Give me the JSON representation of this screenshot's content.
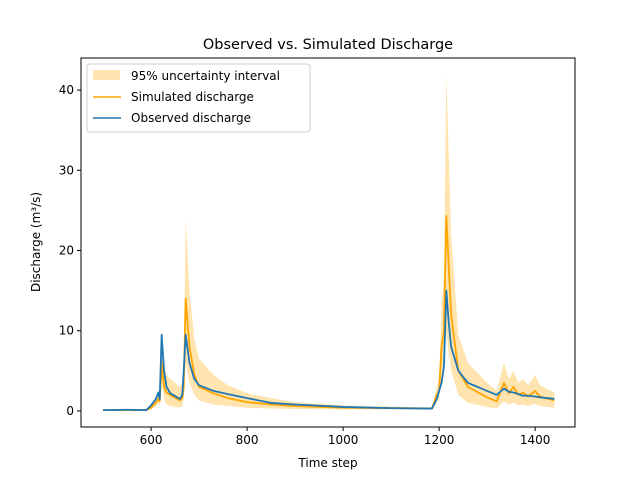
{
  "chart_data": {
    "type": "line",
    "title": "Observed vs. Simulated Discharge",
    "xlabel": "Time step",
    "ylabel": "Discharge (m³/s)",
    "xlim": [
      454,
      1483
    ],
    "ylim": [
      -2,
      44
    ],
    "xticks": [
      600,
      800,
      1000,
      1200,
      1400
    ],
    "yticks": [
      0,
      10,
      20,
      30,
      40
    ],
    "grid": false,
    "legend_placement": "top-left",
    "x": [
      500,
      550,
      590,
      600,
      610,
      615,
      618,
      622,
      627,
      632,
      640,
      660,
      665,
      668,
      672,
      680,
      690,
      700,
      730,
      760,
      800,
      850,
      900,
      1000,
      1100,
      1185,
      1195,
      1200,
      1205,
      1210,
      1215,
      1220,
      1225,
      1240,
      1260,
      1300,
      1320,
      1335,
      1345,
      1355,
      1365,
      1375,
      1385,
      1400,
      1410,
      1440
    ],
    "series": [
      {
        "name": "Simulated discharge",
        "color": "#ffa500",
        "values": [
          0.1,
          0.1,
          0.1,
          0.4,
          1.0,
          1.5,
          1.2,
          6,
          3,
          2.3,
          2,
          1.3,
          1.6,
          3,
          14,
          8,
          4.5,
          3,
          2.2,
          1.6,
          1.1,
          0.8,
          0.6,
          0.4,
          0.35,
          0.3,
          2,
          2.5,
          8,
          10,
          24.3,
          18,
          12,
          5,
          3,
          1.7,
          1.2,
          3.5,
          2.2,
          3,
          2,
          2.3,
          1.8,
          2.5,
          1.8,
          1.3
        ]
      },
      {
        "name": "Observed discharge",
        "color": "#1f77b4",
        "values": [
          0.1,
          0.15,
          0.1,
          0.7,
          1.5,
          2.3,
          1.5,
          9.5,
          5,
          3,
          2.2,
          1.5,
          2,
          5,
          9.5,
          6,
          4,
          3.2,
          2.5,
          2.1,
          1.6,
          1.0,
          0.8,
          0.5,
          0.35,
          0.3,
          1.5,
          2.5,
          3.5,
          5.5,
          15,
          11,
          8,
          5,
          3.5,
          2.5,
          2.0,
          2.8,
          2.4,
          2.3,
          2.1,
          1.9,
          1.9,
          1.8,
          1.7,
          1.5
        ]
      }
    ],
    "band": {
      "name": "95% uncertainty interval",
      "color": "#ffe4b0",
      "lower": [
        0.05,
        0.05,
        0.05,
        0.2,
        0.6,
        0.9,
        0.7,
        3.5,
        1.5,
        0.8,
        0.6,
        0.4,
        0.6,
        1.5,
        6,
        3.5,
        2,
        1.3,
        0.8,
        0.6,
        0.4,
        0.3,
        0.25,
        0.2,
        0.2,
        0.15,
        1,
        1.5,
        4,
        5,
        10,
        7,
        5,
        2,
        1,
        0.5,
        0.3,
        1.2,
        0.8,
        1,
        0.7,
        0.8,
        0.6,
        0.9,
        0.6,
        0.4
      ],
      "upper": [
        0.15,
        0.15,
        0.15,
        0.7,
        1.6,
        2.3,
        1.8,
        10,
        5.5,
        4.5,
        4,
        3,
        3.5,
        6,
        24,
        15,
        9,
        6.5,
        4.5,
        3.2,
        2.2,
        1.6,
        1.1,
        0.7,
        0.55,
        0.45,
        3,
        4,
        13,
        17,
        42,
        32,
        22,
        9.5,
        6,
        3.5,
        2.5,
        6,
        4,
        5,
        3.5,
        4,
        3.2,
        4.5,
        3.2,
        2.3
      ]
    }
  }
}
